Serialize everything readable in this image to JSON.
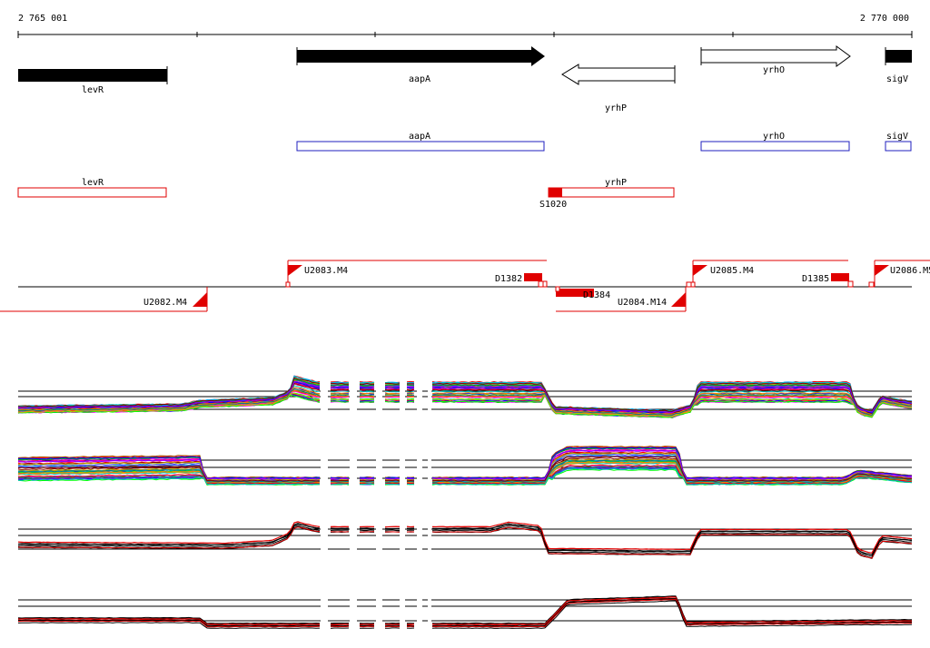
{
  "coordinates": {
    "start": "2 765 001",
    "end": "2 770 000"
  },
  "colors": {
    "gene_fill": "#000000",
    "annot_blue": "#1f1fbf",
    "annot_red": "#e00000",
    "track_line": "#000000"
  },
  "genes": [
    {
      "id": "levR",
      "label": "levR",
      "strand": "none",
      "fill": "black"
    },
    {
      "id": "aapA",
      "label": "aapA",
      "strand": "+",
      "fill": "black"
    },
    {
      "id": "yrhP",
      "label": "yrhP",
      "strand": "-",
      "fill": "white"
    },
    {
      "id": "yrhO",
      "label": "yrhO",
      "strand": "+",
      "fill": "white"
    },
    {
      "id": "sigV",
      "label": "sigV",
      "strand": "+",
      "fill": "black"
    }
  ],
  "annotations_blue": [
    {
      "id": "aapA",
      "label": "aapA"
    },
    {
      "id": "yrhO",
      "label": "yrhO"
    },
    {
      "id": "sigV",
      "label": "sigV"
    }
  ],
  "annotations_red": [
    {
      "id": "levR",
      "label": "levR"
    },
    {
      "id": "yrhP",
      "label": "yrhP"
    }
  ],
  "promoter_label": "S1020",
  "segments": [
    {
      "id": "U2083",
      "label": "U2083.M4"
    },
    {
      "id": "U2082",
      "label": "U2082.M4"
    },
    {
      "id": "D1382",
      "label": "D1382"
    },
    {
      "id": "D1384",
      "label": "D1384"
    },
    {
      "id": "U2084",
      "label": "U2084.M14"
    },
    {
      "id": "U2085",
      "label": "U2085.M4"
    },
    {
      "id": "D1385",
      "label": "D1385"
    },
    {
      "id": "U2086",
      "label": "U2086.M5"
    }
  ],
  "expression_tracks": [
    {
      "id": "track-1",
      "style": "multicolor"
    },
    {
      "id": "track-2",
      "style": "multicolor"
    },
    {
      "id": "track-3",
      "style": "black-red"
    },
    {
      "id": "track-4",
      "style": "black-red"
    }
  ]
}
